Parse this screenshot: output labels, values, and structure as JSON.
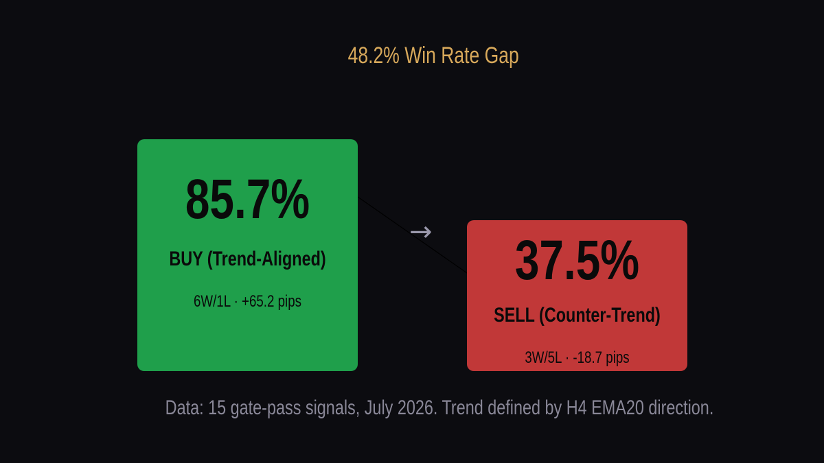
{
  "headline": "48.2% Win Rate Gap",
  "arrow_glyph": "→",
  "footnote": "Data: 15 gate-pass signals, July 2026. Trend defined by H4 EMA20 direction.",
  "colors": {
    "background": "#0c0c10",
    "headline": "#d8a95b",
    "buy": "#1f9f4b",
    "sell": "#c13838",
    "footnote": "#8a8898"
  },
  "chart_data": {
    "type": "bar",
    "title": "48.2% Win Rate Gap",
    "categories": [
      "BUY (Trend-Aligned)",
      "SELL (Counter-Trend)"
    ],
    "values": [
      85.7,
      37.5
    ],
    "value_labels": [
      "85.7%",
      "37.5%"
    ],
    "stats": [
      "6W/1L · +65.2 pips",
      "3W/5L · -18.7 pips"
    ],
    "wins": [
      6,
      3
    ],
    "losses": [
      1,
      5
    ],
    "pips": [
      65.2,
      -18.7
    ],
    "gap": 48.2
  }
}
